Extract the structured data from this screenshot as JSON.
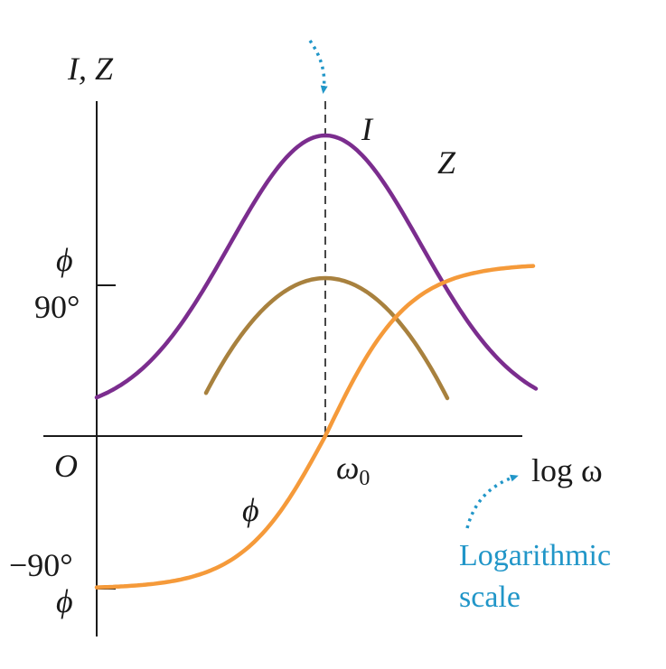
{
  "chart_data": {
    "type": "line",
    "x_axis": {
      "label": "log ω",
      "scale": "log",
      "ticks": [
        {
          "label": "ω0"
        }
      ]
    },
    "y_axis": {
      "label": "I, Z",
      "origin_label": "O",
      "phase_ticks": [
        {
          "symbol": "ϕ",
          "value_label": "90°",
          "value": 90
        },
        {
          "symbol": "ϕ",
          "value_label": "−90°",
          "value": -90
        }
      ]
    },
    "resonance_marker": {
      "x_label": "ω0",
      "line_style": "dashed"
    },
    "series": [
      {
        "name": "I",
        "color": "#7b2d8e",
        "peak_at": "ω0"
      },
      {
        "name": "Z",
        "color": "#a8813e",
        "minimum_at": "ω0"
      },
      {
        "name": "ϕ",
        "color": "#f59a3a",
        "range": [
          -90,
          90
        ],
        "zero_at": "ω0"
      }
    ],
    "annotation": {
      "text_lines": [
        "Logarithmic",
        "scale"
      ],
      "color": "#2196c8"
    },
    "grid": false,
    "legend": "none"
  }
}
